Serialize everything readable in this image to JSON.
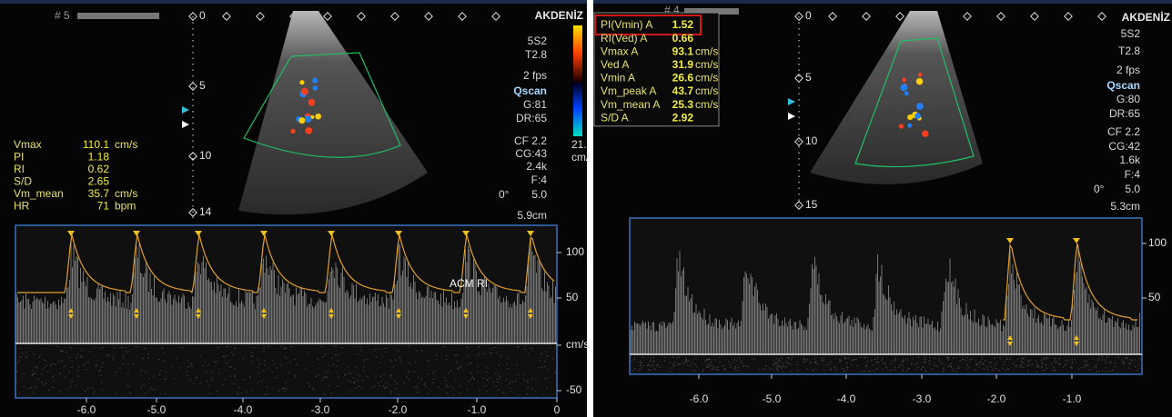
{
  "left_panel": {
    "frame": "# 5",
    "brand": "AKDENİZ",
    "settings": [
      "5S2",
      "T2.8",
      "2 fps",
      "Qscan",
      "G:81",
      "DR:65",
      "CF 2.2",
      "CG:43",
      "2.4k",
      "F:4",
      "0°",
      "5.0",
      "5.9cm"
    ],
    "color_scale": [
      "21.",
      "cm/"
    ],
    "depth_labels": [
      "0",
      "5",
      "10",
      "14"
    ],
    "measurements": [
      {
        "label": "Vmax",
        "value": "110.1",
        "unit": "cm/s"
      },
      {
        "label": "PI",
        "value": "1.18"
      },
      {
        "label": "RI",
        "value": "0.62"
      },
      {
        "label": "S/D",
        "value": "2.65"
      },
      {
        "label": "Vm_mean",
        "value": "35.7",
        "unit": "cm/s"
      },
      {
        "label": "HR",
        "value": "71",
        "unit": "bpm"
      }
    ],
    "annotation": "ACM RI",
    "velocity_labels": [
      "100",
      "50",
      "cm/s",
      "-50"
    ],
    "time_labels": [
      "-6.0",
      "-5.0",
      "-4.0",
      "-3.0",
      "-2.0",
      "-1.0",
      "0"
    ]
  },
  "right_panel": {
    "frame": "# 4",
    "brand": "AKDENİZ",
    "settings": [
      "5S2",
      "T2.8",
      "2 fps",
      "Qscan",
      "G:80",
      "DR:65",
      "CF 2.2",
      "CG:42",
      "1.6k",
      "F:4",
      "0°",
      "5.0",
      "5.3cm"
    ],
    "depth_labels": [
      "0",
      "5",
      "10",
      "15"
    ],
    "measurements": [
      {
        "label": "PI(Vmin) A",
        "value": "1.52"
      },
      {
        "label": "RI(Ved) A",
        "value": "0.66"
      },
      {
        "label": "Vmax A",
        "value": "93.1",
        "unit": "cm/s"
      },
      {
        "label": "Ved A",
        "value": "31.9",
        "unit": "cm/s"
      },
      {
        "label": "Vmin A",
        "value": "26.6",
        "unit": "cm/s"
      },
      {
        "label": "Vm_peak A",
        "value": "43.7",
        "unit": "cm/s"
      },
      {
        "label": "Vm_mean A",
        "value": "25.3",
        "unit": "cm/s"
      },
      {
        "label": "S/D A",
        "value": "2.92"
      }
    ],
    "velocity_labels": [
      "100",
      "50"
    ],
    "time_labels": [
      "-6.0",
      "-5.0",
      "-4.0",
      "-3.0",
      "-2.0",
      "-1.0"
    ]
  }
}
